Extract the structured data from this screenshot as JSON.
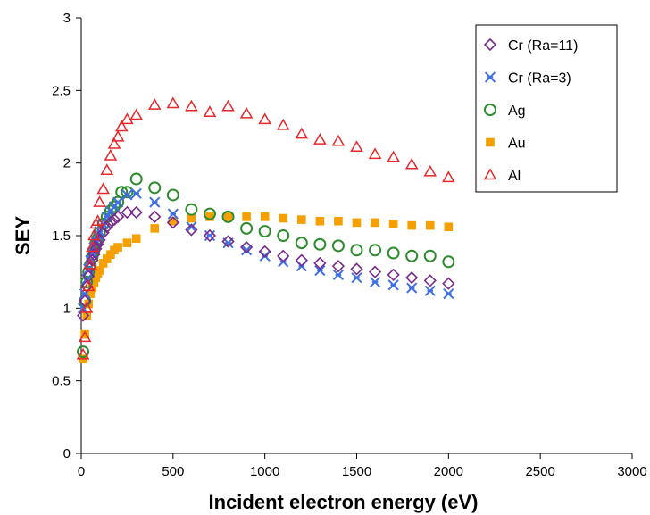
{
  "chart_data": {
    "type": "scatter",
    "title": "",
    "xlabel": "Incident electron energy (eV)",
    "ylabel": "SEY",
    "xlim": [
      0,
      3000
    ],
    "ylim": [
      0,
      3
    ],
    "x_ticks": [
      0,
      500,
      1000,
      1500,
      2000,
      2500,
      3000
    ],
    "y_ticks": [
      0,
      0.5,
      1,
      1.5,
      2,
      2.5,
      3
    ],
    "x_tick_labels": [
      "0",
      "500",
      "1000",
      "1500",
      "2000",
      "2500",
      "3000"
    ],
    "y_tick_labels": [
      "0",
      "0.5",
      "1",
      "1.5",
      "2",
      "2.5",
      "3"
    ],
    "grid": false,
    "legend_position": "top-right",
    "series": [
      {
        "name": "Cr (Ra=11)",
        "marker": "diamond",
        "color": "#7B2A8C",
        "x": [
          10,
          20,
          30,
          40,
          50,
          60,
          70,
          80,
          90,
          100,
          120,
          140,
          160,
          180,
          200,
          250,
          300,
          400,
          500,
          600,
          700,
          800,
          900,
          1000,
          1100,
          1200,
          1300,
          1400,
          1500,
          1600,
          1700,
          1800,
          1900,
          2000
        ],
        "y": [
          0.95,
          1.05,
          1.15,
          1.22,
          1.28,
          1.33,
          1.37,
          1.41,
          1.44,
          1.47,
          1.52,
          1.56,
          1.59,
          1.61,
          1.63,
          1.66,
          1.66,
          1.63,
          1.59,
          1.54,
          1.5,
          1.46,
          1.42,
          1.39,
          1.36,
          1.33,
          1.31,
          1.29,
          1.27,
          1.25,
          1.23,
          1.21,
          1.19,
          1.17
        ]
      },
      {
        "name": "Cr (Ra=3)",
        "marker": "asterisk",
        "color": "#3F6FE0",
        "x": [
          10,
          20,
          30,
          40,
          50,
          60,
          70,
          80,
          90,
          100,
          120,
          140,
          160,
          180,
          200,
          250,
          300,
          400,
          500,
          600,
          700,
          800,
          900,
          1000,
          1100,
          1200,
          1300,
          1400,
          1500,
          1600,
          1700,
          1800,
          1900,
          2000
        ],
        "y": [
          1.0,
          1.1,
          1.2,
          1.27,
          1.33,
          1.38,
          1.42,
          1.46,
          1.5,
          1.53,
          1.58,
          1.63,
          1.67,
          1.7,
          1.73,
          1.78,
          1.79,
          1.73,
          1.65,
          1.56,
          1.5,
          1.45,
          1.4,
          1.36,
          1.32,
          1.29,
          1.26,
          1.23,
          1.21,
          1.18,
          1.16,
          1.14,
          1.12,
          1.1
        ]
      },
      {
        "name": "Ag",
        "marker": "circle",
        "color": "#2E8B2E",
        "x": [
          10,
          20,
          30,
          40,
          50,
          60,
          70,
          80,
          90,
          100,
          120,
          140,
          160,
          180,
          200,
          220,
          250,
          300,
          400,
          500,
          600,
          700,
          800,
          900,
          1000,
          1100,
          1200,
          1300,
          1400,
          1500,
          1600,
          1700,
          1800,
          1900,
          2000
        ],
        "y": [
          0.7,
          1.05,
          1.18,
          1.25,
          1.3,
          1.35,
          1.4,
          1.45,
          1.48,
          1.52,
          1.58,
          1.63,
          1.67,
          1.7,
          1.73,
          1.8,
          1.8,
          1.89,
          1.83,
          1.78,
          1.68,
          1.65,
          1.63,
          1.55,
          1.53,
          1.5,
          1.45,
          1.44,
          1.43,
          1.4,
          1.4,
          1.38,
          1.36,
          1.36,
          1.32
        ]
      },
      {
        "name": "Au",
        "marker": "square",
        "color": "#F5A000",
        "x": [
          10,
          20,
          30,
          40,
          50,
          60,
          70,
          80,
          90,
          100,
          120,
          140,
          160,
          180,
          200,
          250,
          300,
          400,
          500,
          600,
          700,
          800,
          900,
          1000,
          1100,
          1200,
          1300,
          1400,
          1500,
          1600,
          1700,
          1800,
          1900,
          2000
        ],
        "y": [
          0.65,
          0.82,
          0.95,
          1.03,
          1.1,
          1.14,
          1.18,
          1.21,
          1.24,
          1.26,
          1.31,
          1.34,
          1.37,
          1.4,
          1.42,
          1.45,
          1.48,
          1.55,
          1.6,
          1.62,
          1.63,
          1.63,
          1.63,
          1.63,
          1.62,
          1.61,
          1.6,
          1.6,
          1.59,
          1.59,
          1.58,
          1.57,
          1.57,
          1.56
        ]
      },
      {
        "name": "Al",
        "marker": "triangle",
        "color": "#E8272B",
        "x": [
          10,
          20,
          30,
          40,
          50,
          60,
          70,
          80,
          90,
          100,
          120,
          140,
          160,
          180,
          200,
          220,
          250,
          300,
          400,
          500,
          600,
          700,
          800,
          900,
          1000,
          1100,
          1200,
          1300,
          1400,
          1500,
          1600,
          1700,
          1800,
          1900,
          2000
        ],
        "y": [
          0.68,
          0.8,
          1.0,
          1.15,
          1.3,
          1.42,
          1.5,
          1.58,
          1.6,
          1.73,
          1.82,
          1.95,
          2.05,
          2.13,
          2.18,
          2.25,
          2.3,
          2.33,
          2.4,
          2.41,
          2.39,
          2.35,
          2.39,
          2.34,
          2.3,
          2.26,
          2.2,
          2.16,
          2.15,
          2.11,
          2.06,
          2.04,
          1.99,
          1.94,
          1.9
        ]
      }
    ]
  }
}
